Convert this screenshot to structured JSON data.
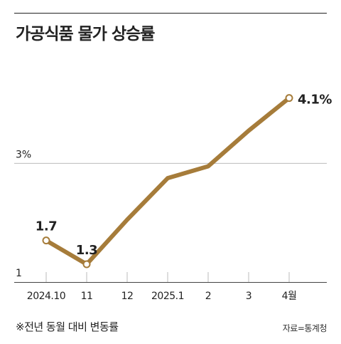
{
  "title": "가공식품 물가 상승률",
  "footnote": "※전년 동월 대비 변동률",
  "source": "자료=통계청",
  "colors": {
    "line": "#a67c3a",
    "axis": "#444444",
    "grid": "#bbbbbb",
    "text": "#222222"
  },
  "chart_data": {
    "type": "line",
    "title": "가공식품 물가 상승률",
    "categories": [
      "2024.10",
      "11",
      "12",
      "2025.1",
      "2",
      "3",
      "4월"
    ],
    "series": [
      {
        "values": [
          1.7,
          1.3,
          2.05,
          2.75,
          2.95,
          3.55,
          4.1
        ]
      }
    ],
    "data_labels": [
      {
        "index": 0,
        "text": "1.7"
      },
      {
        "index": 1,
        "text": "1.3"
      },
      {
        "index": 6,
        "text": "4.1%"
      }
    ],
    "y_ticks": [
      {
        "value": 1,
        "text": "1"
      },
      {
        "value": 3,
        "text": "3%"
      }
    ],
    "ylim": [
      1,
      4.6
    ],
    "grid": true,
    "markers_on": [
      0,
      1,
      6
    ]
  }
}
